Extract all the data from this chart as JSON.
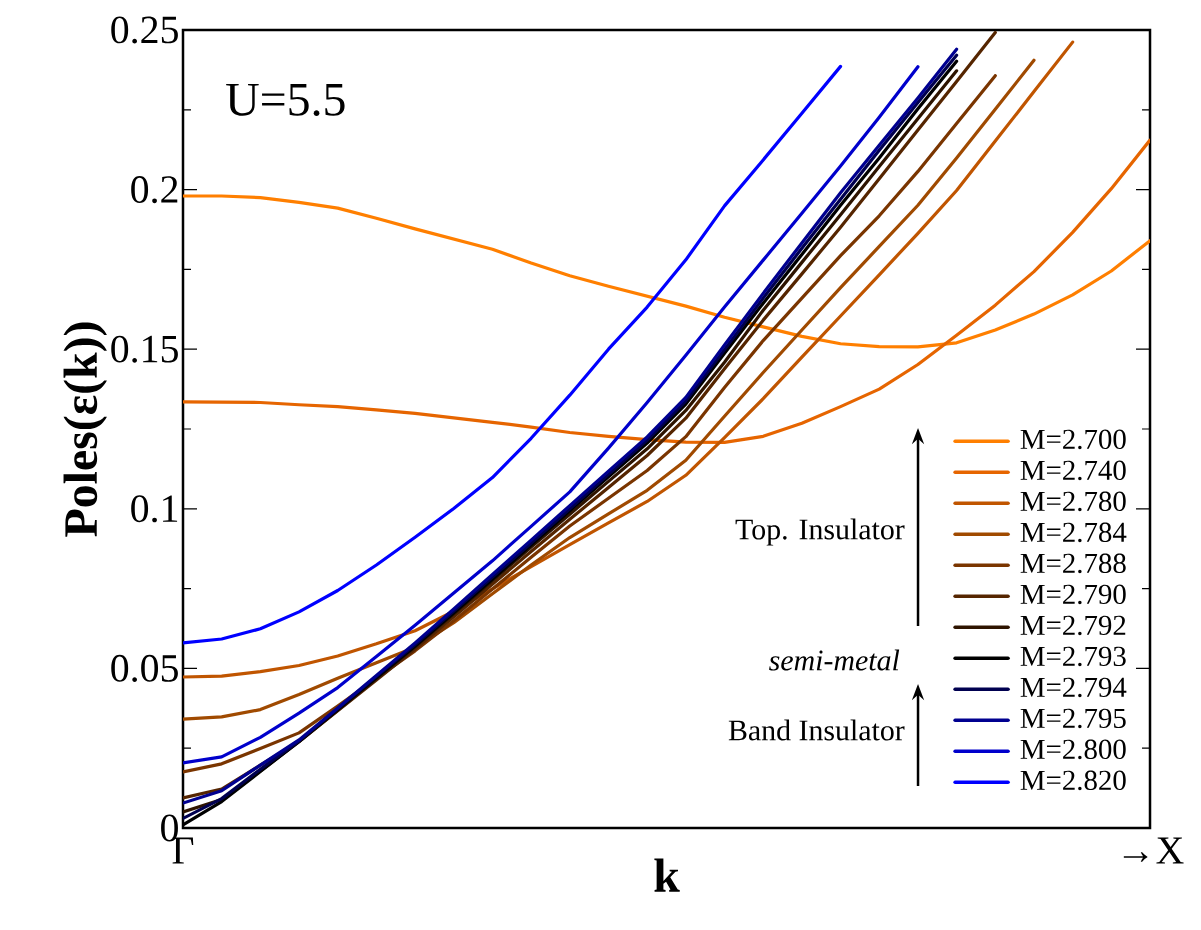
{
  "chart_data": {
    "type": "line",
    "xlabel": "k",
    "ylabel": "Poles(ε(k))",
    "annotations": [
      "U=5.5",
      "Top. Insulator",
      "semi-metal",
      "Band Insulator"
    ],
    "categories": [
      "Γ",
      null,
      null,
      null,
      null,
      null,
      null,
      null,
      null,
      null,
      null,
      null,
      null,
      null,
      null,
      null,
      null,
      null,
      null,
      null,
      null,
      null,
      null,
      null,
      null,
      "→X"
    ],
    "ylim": [
      0,
      0.25
    ],
    "yticks": [
      0,
      0.05,
      0.1,
      0.15,
      0.2,
      0.25
    ],
    "legend": "bottom right",
    "grid": false,
    "line_style": "solid",
    "series": [
      {
        "name": "M=2.700",
        "color": "#ff7f00",
        "values": [
          0.198,
          0.198,
          0.1975,
          0.196,
          0.1942,
          0.191,
          0.1877,
          0.1845,
          0.1813,
          0.177,
          0.173,
          0.1697,
          0.1666,
          0.1635,
          0.16,
          0.157,
          0.154,
          0.1517,
          0.1508,
          0.1507,
          0.152,
          0.156,
          0.161,
          0.167,
          0.1745,
          0.184
        ]
      },
      {
        "name": "M=2.740",
        "color": "#e66500",
        "values": [
          0.1335,
          0.1334,
          0.1333,
          0.1326,
          0.132,
          0.131,
          0.1299,
          0.1285,
          0.1271,
          0.1256,
          0.1239,
          0.1227,
          0.1217,
          0.1209,
          0.1208,
          0.1227,
          0.1268,
          0.132,
          0.1375,
          0.1452,
          0.1544,
          0.1638,
          0.1743,
          0.1866,
          0.2003,
          0.2155
        ]
      },
      {
        "name": "M=2.780",
        "color": "#c05500",
        "values": [
          0.0473,
          0.0476,
          0.049,
          0.0509,
          0.0539,
          0.0577,
          0.0618,
          0.0679,
          0.0749,
          0.0819,
          0.0888,
          0.0956,
          0.1023,
          0.1105,
          0.1223,
          0.1345,
          0.1475,
          0.1604,
          0.1733,
          0.1863,
          0.1997,
          0.2152,
          0.2307,
          0.2462,
          null,
          null
        ]
      },
      {
        "name": "M=2.784",
        "color": "#a04a00",
        "values": [
          0.0341,
          0.0348,
          0.0371,
          0.0418,
          0.0469,
          0.0518,
          0.0566,
          0.0643,
          0.0734,
          0.0824,
          0.091,
          0.0984,
          0.1058,
          0.1152,
          0.129,
          0.1427,
          0.156,
          0.1693,
          0.1822,
          0.1951,
          0.2099,
          0.2252,
          0.2405,
          null,
          null,
          null
        ]
      },
      {
        "name": "M=2.788",
        "color": "#7a3500",
        "values": [
          0.0176,
          0.0201,
          0.0249,
          0.0298,
          0.0382,
          0.0469,
          0.0555,
          0.0649,
          0.0749,
          0.0848,
          0.0946,
          0.1033,
          0.112,
          0.1226,
          0.138,
          0.1527,
          0.166,
          0.1793,
          0.1918,
          0.2057,
          0.2207,
          0.2357,
          null,
          null,
          null,
          null
        ]
      },
      {
        "name": "M=2.790",
        "color": "#552500",
        "values": [
          0.0094,
          0.0122,
          0.0197,
          0.0271,
          0.0367,
          0.0464,
          0.0561,
          0.0662,
          0.0764,
          0.0866,
          0.0967,
          0.1067,
          0.1167,
          0.1284,
          0.1439,
          0.1591,
          0.1736,
          0.1882,
          0.2034,
          0.2187,
          0.2339,
          0.2492,
          null,
          null,
          null,
          null
        ]
      },
      {
        "name": "M=2.792",
        "color": "#2e1400",
        "values": [
          0.005,
          0.0089,
          0.0179,
          0.027,
          0.0369,
          0.0468,
          0.0568,
          0.0671,
          0.0775,
          0.088,
          0.0983,
          0.1086,
          0.1188,
          0.1308,
          0.1459,
          0.1622,
          0.1772,
          0.1921,
          0.2072,
          0.2222,
          0.2372,
          null,
          null,
          null,
          null,
          null
        ]
      },
      {
        "name": "M=2.793",
        "color": "#000000",
        "values": [
          0.001,
          0.0083,
          0.0177,
          0.0271,
          0.0371,
          0.0471,
          0.057,
          0.0674,
          0.078,
          0.0887,
          0.0994,
          0.11,
          0.1206,
          0.1328,
          0.1487,
          0.1644,
          0.1797,
          0.1951,
          0.2099,
          0.2253,
          0.2402,
          null,
          null,
          null,
          null,
          null
        ]
      },
      {
        "name": "M=2.794",
        "color": "#000050",
        "values": [
          0.003,
          0.0092,
          0.0184,
          0.0273,
          0.0374,
          0.0475,
          0.0575,
          0.068,
          0.0786,
          0.0893,
          0.1,
          0.1108,
          0.1215,
          0.1338,
          0.1499,
          0.166,
          0.1816,
          0.197,
          0.2123,
          0.2273,
          0.2421,
          null,
          null,
          null,
          null,
          null
        ]
      },
      {
        "name": "M=2.795",
        "color": "#000090",
        "values": [
          0.0078,
          0.0117,
          0.0197,
          0.0276,
          0.0376,
          0.0478,
          0.058,
          0.0686,
          0.0794,
          0.0902,
          0.101,
          0.1118,
          0.1225,
          0.1349,
          0.1513,
          0.1675,
          0.1833,
          0.199,
          0.2139,
          0.2287,
          0.244,
          null,
          null,
          null,
          null,
          null
        ]
      },
      {
        "name": "M=2.800",
        "color": "#0000cc",
        "values": [
          0.0204,
          0.0223,
          0.0284,
          0.036,
          0.044,
          0.0537,
          0.0635,
          0.0736,
          0.0837,
          0.0945,
          0.1053,
          0.119,
          0.1333,
          0.1481,
          0.1632,
          0.1779,
          0.1926,
          0.2074,
          0.2227,
          0.2385,
          null,
          null,
          null,
          null,
          null,
          null
        ]
      },
      {
        "name": "M=2.820",
        "color": "#0000ff",
        "values": [
          0.058,
          0.0592,
          0.0624,
          0.0677,
          0.0744,
          0.0824,
          0.0911,
          0.1001,
          0.1098,
          0.1221,
          0.1356,
          0.15,
          0.1632,
          0.178,
          0.1949,
          0.2093,
          0.2239,
          0.2386,
          null,
          null,
          null,
          null,
          null,
          null,
          null,
          null
        ]
      }
    ]
  }
}
